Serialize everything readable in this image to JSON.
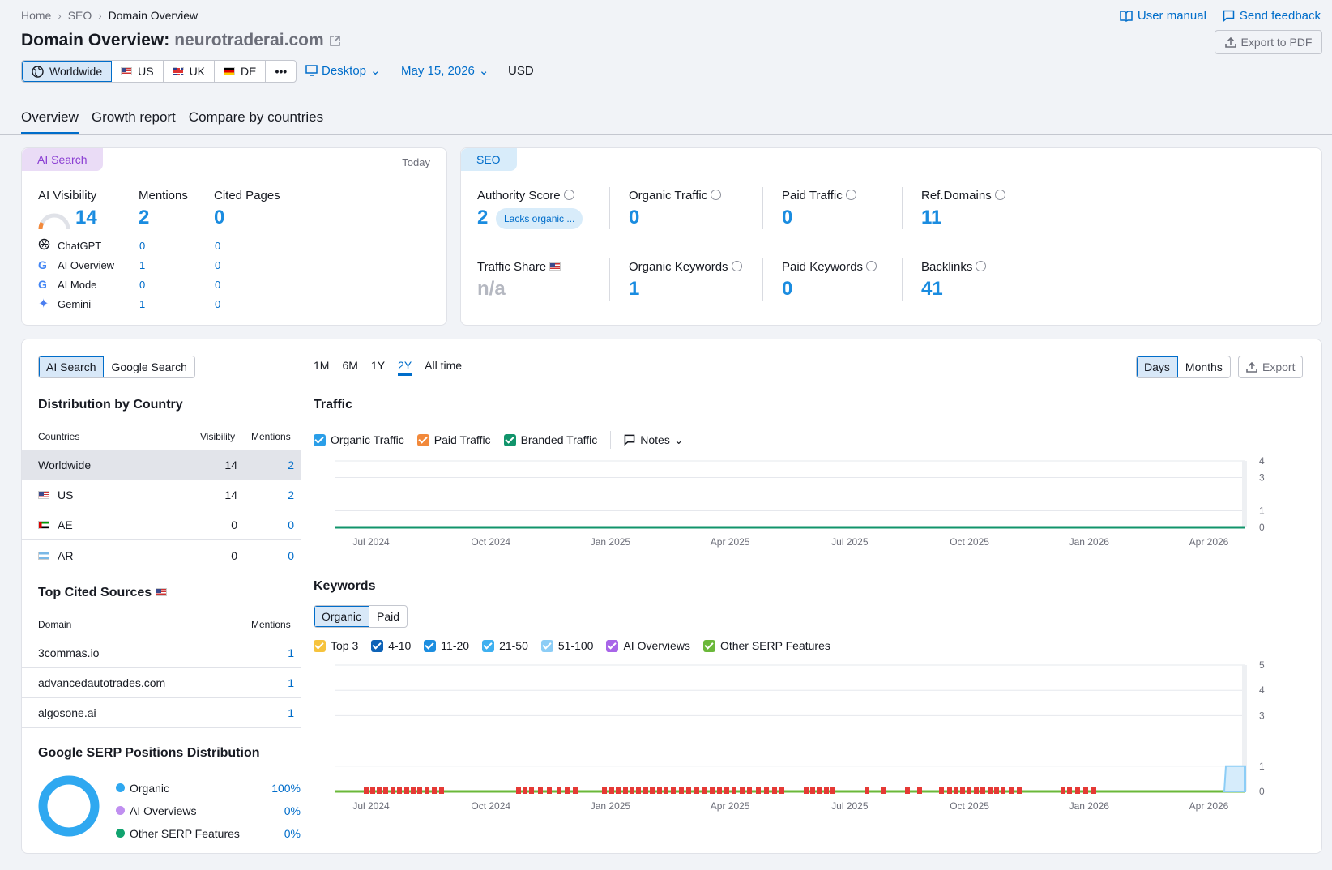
{
  "breadcrumb": [
    "Home",
    "SEO",
    "Domain Overview"
  ],
  "top_links": {
    "manual": "User manual",
    "feedback": "Send feedback"
  },
  "title": {
    "prefix": "Domain Overview:",
    "domain": "neurotraderai.com"
  },
  "export_pdf": "Export to PDF",
  "regions": [
    "Worldwide",
    "US",
    "UK",
    "DE",
    "•••"
  ],
  "device": "Desktop",
  "date": "May 15, 2026",
  "currency": "USD",
  "tabs": [
    "Overview",
    "Growth report",
    "Compare by countries"
  ],
  "ai_card": {
    "tag": "AI Search",
    "today": "Today",
    "visibility_label": "AI Visibility",
    "visibility": "14",
    "mentions_label": "Mentions",
    "mentions": "2",
    "cited_label": "Cited Pages",
    "cited": "0",
    "sources": [
      {
        "name": "ChatGPT",
        "mentions": "0",
        "cited": "0"
      },
      {
        "name": "AI Overview",
        "mentions": "1",
        "cited": "0"
      },
      {
        "name": "AI Mode",
        "mentions": "0",
        "cited": "0"
      },
      {
        "name": "Gemini",
        "mentions": "1",
        "cited": "0"
      }
    ]
  },
  "seo_card": {
    "tag": "SEO",
    "authority_label": "Authority Score",
    "authority": "2",
    "authority_chip": "Lacks organic ...",
    "organic_traffic_label": "Organic Traffic",
    "organic_traffic": "0",
    "paid_traffic_label": "Paid Traffic",
    "paid_traffic": "0",
    "ref_domains_label": "Ref.Domains",
    "ref_domains": "11",
    "traffic_share_label": "Traffic Share",
    "traffic_share": "n/a",
    "organic_kw_label": "Organic Keywords",
    "organic_kw": "1",
    "paid_kw_label": "Paid Keywords",
    "paid_kw": "0",
    "backlinks_label": "Backlinks",
    "backlinks": "41"
  },
  "left_panel": {
    "toggle": [
      "AI Search",
      "Google Search"
    ],
    "dist_title": "Distribution by Country",
    "dist_headers": [
      "Countries",
      "Visibility",
      "Mentions"
    ],
    "dist_rows": [
      {
        "country": "Worldwide",
        "visibility": "14",
        "mentions": "2"
      },
      {
        "country": "US",
        "visibility": "14",
        "mentions": "2"
      },
      {
        "country": "AE",
        "visibility": "0",
        "mentions": "0"
      },
      {
        "country": "AR",
        "visibility": "0",
        "mentions": "0"
      }
    ],
    "cited_title": "Top Cited Sources",
    "cited_headers": [
      "Domain",
      "Mentions"
    ],
    "cited_rows": [
      {
        "domain": "3commas.io",
        "mentions": "1"
      },
      {
        "domain": "advancedautotrades.com",
        "mentions": "1"
      },
      {
        "domain": "algosone.ai",
        "mentions": "1"
      }
    ],
    "serp_title": "Google SERP Positions Distribution",
    "serp_items": [
      {
        "label": "Organic",
        "value": "100%",
        "color": "#2fa8f0"
      },
      {
        "label": "AI Overviews",
        "value": "0%",
        "color": "#c08ff0"
      },
      {
        "label": "Other SERP Features",
        "value": "0%",
        "color": "#11a36f"
      }
    ]
  },
  "ranges": [
    "1M",
    "6M",
    "1Y",
    "2Y",
    "All time"
  ],
  "granularity": [
    "Days",
    "Months"
  ],
  "export": "Export",
  "traffic": {
    "title": "Traffic",
    "legend": [
      {
        "label": "Organic Traffic",
        "color": "#2a9ee8"
      },
      {
        "label": "Paid Traffic",
        "color": "#f2893b"
      },
      {
        "label": "Branded Traffic",
        "color": "#11946b"
      }
    ],
    "notes": "Notes"
  },
  "keywords": {
    "title": "Keywords",
    "toggle": [
      "Organic",
      "Paid"
    ],
    "legend": [
      {
        "label": "Top 3",
        "color": "#f6c33d"
      },
      {
        "label": "4-10",
        "color": "#0e63b7"
      },
      {
        "label": "11-20",
        "color": "#1c8ee0"
      },
      {
        "label": "21-50",
        "color": "#3eb0f0"
      },
      {
        "label": "51-100",
        "color": "#8ccdf6"
      },
      {
        "label": "AI Overviews",
        "color": "#a865e8"
      },
      {
        "label": "Other SERP Features",
        "color": "#6bb83a"
      }
    ]
  },
  "chart_data": [
    {
      "type": "line",
      "title": "Traffic",
      "x": [
        "Jul 2024",
        "Oct 2024",
        "Jan 2025",
        "Apr 2025",
        "Jul 2025",
        "Oct 2025",
        "Jan 2026",
        "Apr 2026"
      ],
      "series": [
        {
          "name": "Organic Traffic",
          "values": [
            0,
            0,
            0,
            0,
            0,
            0,
            0,
            0
          ]
        },
        {
          "name": "Branded Traffic",
          "values": [
            0,
            0,
            0,
            0,
            0,
            0,
            0,
            0
          ]
        }
      ],
      "yticks": [
        "0",
        "1",
        "3",
        "4"
      ],
      "ylim": [
        0,
        4
      ],
      "grid": true
    },
    {
      "type": "area",
      "title": "Keywords",
      "x": [
        "Jul 2024",
        "Oct 2024",
        "Jan 2025",
        "Apr 2025",
        "Jul 2025",
        "Oct 2025",
        "Jan 2026",
        "Apr 2026"
      ],
      "series": [
        {
          "name": "51-100",
          "values": [
            0,
            0,
            0,
            0,
            0,
            0,
            0,
            1
          ]
        }
      ],
      "yticks": [
        "0",
        "1",
        "3",
        "4",
        "5"
      ],
      "ylim": [
        0,
        5
      ],
      "grid": true
    }
  ]
}
